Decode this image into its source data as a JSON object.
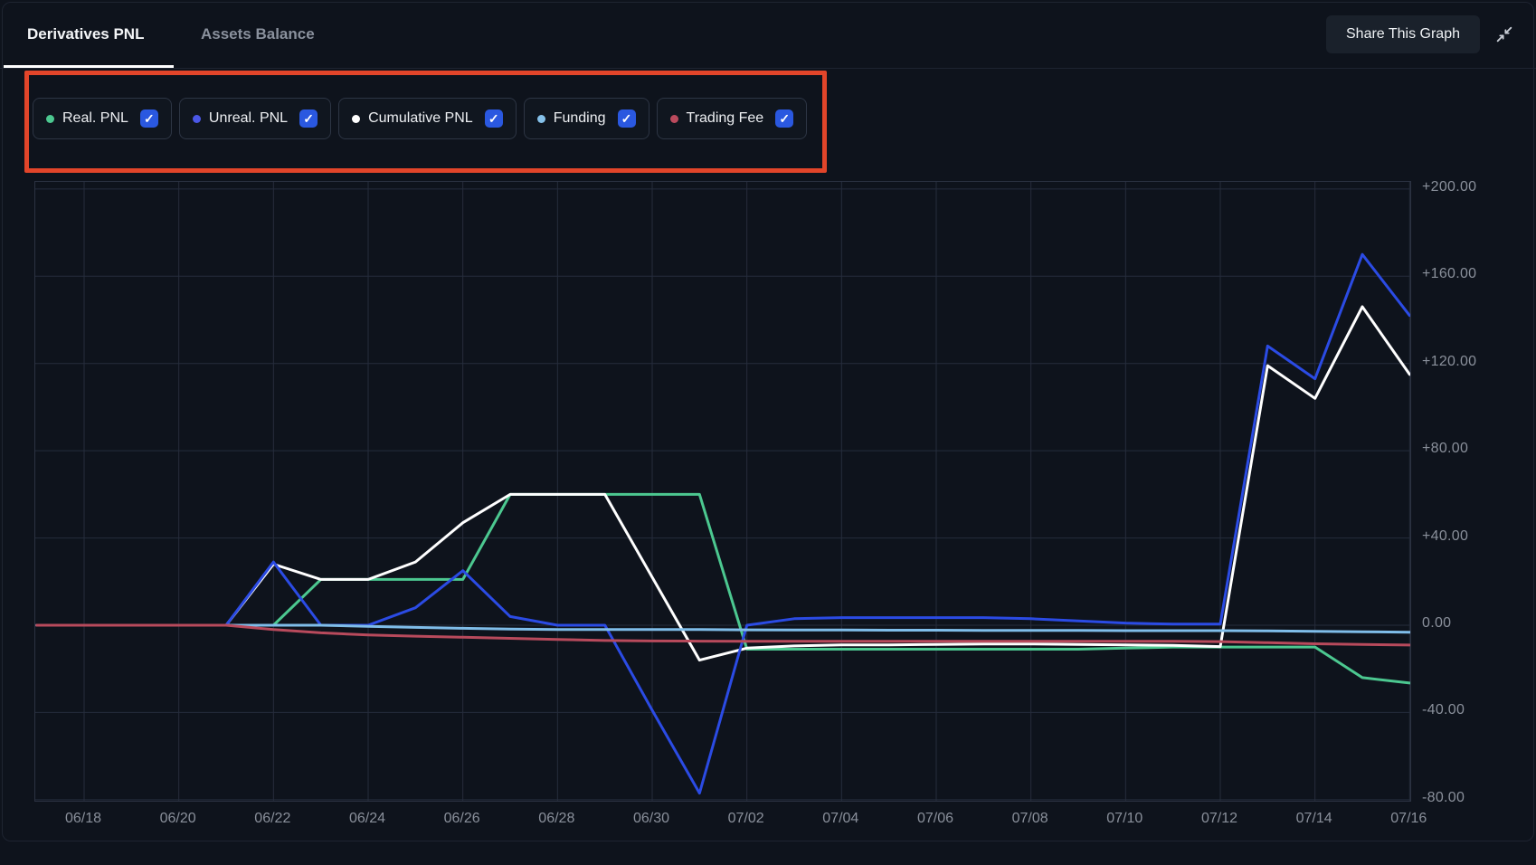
{
  "tabs": [
    {
      "label": "Derivatives PNL",
      "active": true
    },
    {
      "label": "Assets Balance",
      "active": false
    }
  ],
  "share_button": {
    "label": "Share This Graph"
  },
  "annotation": {
    "color": "#e2452a"
  },
  "legend": [
    {
      "label": "Real. PNL",
      "color": "#4cc890",
      "checked": true
    },
    {
      "label": "Unreal. PNL",
      "color": "#4a57e6",
      "checked": true
    },
    {
      "label": "Cumulative PNL",
      "color": "#ffffff",
      "checked": true
    },
    {
      "label": "Funding",
      "color": "#85c1ea",
      "checked": true
    },
    {
      "label": "Trading Fee",
      "color": "#bb4a5d",
      "checked": true
    }
  ],
  "chart_data": {
    "type": "line",
    "x": [
      "06/17",
      "06/18",
      "06/19",
      "06/20",
      "06/21",
      "06/22",
      "06/23",
      "06/24",
      "06/25",
      "06/26",
      "06/27",
      "06/28",
      "06/29",
      "06/30",
      "07/01",
      "07/02",
      "07/03",
      "07/04",
      "07/05",
      "07/06",
      "07/07",
      "07/08",
      "07/09",
      "07/10",
      "07/11",
      "07/12",
      "07/13",
      "07/14",
      "07/15",
      "07/16"
    ],
    "x_tick_labels": [
      "06/18",
      "06/20",
      "06/22",
      "06/24",
      "06/26",
      "06/28",
      "06/30",
      "07/02",
      "07/04",
      "07/06",
      "07/08",
      "07/10",
      "07/12",
      "07/14",
      "07/16"
    ],
    "y_ticks": [
      {
        "label": "+200.00",
        "value": 200
      },
      {
        "label": "+160.00",
        "value": 160
      },
      {
        "label": "+120.00",
        "value": 120
      },
      {
        "label": "+80.00",
        "value": 80
      },
      {
        "label": "+40.00",
        "value": 40
      },
      {
        "label": "0.00",
        "value": 0
      },
      {
        "label": "-40.00",
        "value": -40
      },
      {
        "label": "-80.00",
        "value": -80
      }
    ],
    "ylim": [
      -80,
      200
    ],
    "grid": true,
    "grid_color": "#262d3c",
    "legend_position": "top",
    "series": [
      {
        "name": "Real. PNL",
        "color": "#4cc890",
        "values": [
          0,
          0,
          0,
          0,
          0,
          0,
          21,
          21,
          21,
          21,
          60,
          60,
          60,
          60,
          60,
          -11,
          -11,
          -11,
          -11,
          -11,
          -11,
          -11,
          -11,
          -10.5,
          -10,
          -10,
          -10,
          -10,
          -24,
          -26.5
        ]
      },
      {
        "name": "Cumulative PNL",
        "color": "#ffffff",
        "values": [
          0,
          0,
          0,
          0,
          0,
          28,
          21,
          21,
          29,
          47,
          60,
          60,
          60,
          22,
          -16,
          -10.5,
          -9.5,
          -9,
          -9,
          -8.8,
          -8.6,
          -8.6,
          -8.8,
          -9,
          -9.2,
          -9.8,
          119,
          104,
          146,
          115
        ]
      },
      {
        "name": "Unreal. PNL",
        "color": "#2b4be4",
        "values": [
          0,
          0,
          0,
          0,
          0,
          29,
          0,
          0,
          8,
          25,
          4,
          0,
          0,
          -39,
          -77,
          0,
          3,
          3.5,
          3.5,
          3.5,
          3.5,
          3,
          2,
          1,
          0.5,
          0.5,
          128,
          113,
          170,
          142
        ]
      },
      {
        "name": "Funding",
        "color": "#7fbde9",
        "values": [
          0,
          0,
          0,
          0,
          0,
          0,
          0,
          -0.5,
          -1,
          -1.4,
          -1.8,
          -2,
          -2,
          -2,
          -2,
          -2.1,
          -2.2,
          -2.2,
          -2.3,
          -2.3,
          -2.4,
          -2.4,
          -2.4,
          -2.5,
          -2.5,
          -2.5,
          -2.6,
          -2.8,
          -3,
          -3.2
        ]
      },
      {
        "name": "Trading Fee",
        "color": "#b84a5c",
        "values": [
          0,
          0,
          0,
          0,
          0,
          -2,
          -3.5,
          -4.5,
          -5,
          -5.5,
          -6,
          -6.5,
          -7,
          -7.2,
          -7.3,
          -7.4,
          -7.4,
          -7.4,
          -7.4,
          -7.4,
          -7.4,
          -7.4,
          -7.4,
          -7.4,
          -7.4,
          -7.5,
          -8,
          -8.5,
          -8.8,
          -9.1
        ]
      }
    ]
  }
}
